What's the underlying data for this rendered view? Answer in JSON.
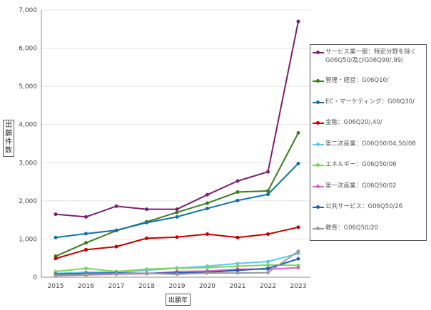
{
  "chart_data": {
    "type": "line",
    "xlabel": "出願年",
    "ylabel": "出願件数",
    "ylim": [
      0,
      7000
    ],
    "yticks": [
      "0",
      "1,000",
      "2,000",
      "3,000",
      "4,000",
      "5,000",
      "6,000",
      "7,000"
    ],
    "categories": [
      "2015",
      "2016",
      "2017",
      "2018",
      "2019",
      "2020",
      "2021",
      "2022",
      "2023"
    ],
    "grid": true,
    "legend_position": "right",
    "series": [
      {
        "name": "サービス業一般：特定分野を除くG06Q50/及びG06Q90/,99/",
        "color": "#7b1f6f",
        "values": [
          1650,
          1580,
          1860,
          1780,
          1780,
          2160,
          2520,
          2760,
          6700
        ]
      },
      {
        "name": "管理・経営：G06Q10/",
        "color": "#3a7d1e",
        "values": [
          550,
          900,
          1220,
          1450,
          1700,
          1940,
          2230,
          2260,
          3780
        ]
      },
      {
        "name": "EC・マーケティング：G06Q30/",
        "color": "#1170a8",
        "values": [
          1040,
          1140,
          1230,
          1430,
          1580,
          1800,
          2010,
          2170,
          2980
        ]
      },
      {
        "name": "金融：G06Q20/,40/",
        "color": "#c00000",
        "values": [
          490,
          720,
          800,
          1020,
          1050,
          1130,
          1040,
          1130,
          1310
        ]
      },
      {
        "name": "第二次産業：G06Q50/04,50/08",
        "color": "#5bc8f0",
        "values": [
          100,
          130,
          130,
          180,
          240,
          290,
          360,
          410,
          620
        ]
      },
      {
        "name": "エネルギー：G06Q50/06",
        "color": "#7fd35a",
        "values": [
          150,
          230,
          150,
          210,
          240,
          250,
          290,
          320,
          310
        ]
      },
      {
        "name": "第一次産業：G06Q50/02",
        "color": "#e060c8",
        "values": [
          40,
          60,
          80,
          90,
          150,
          160,
          210,
          210,
          250
        ]
      },
      {
        "name": "公共サービス：G06Q50/26",
        "color": "#1f5fb4",
        "values": [
          80,
          100,
          110,
          100,
          110,
          130,
          180,
          230,
          480
        ]
      },
      {
        "name": "教育：G06Q50/20",
        "color": "#999999",
        "values": [
          50,
          80,
          90,
          100,
          80,
          110,
          110,
          120,
          680
        ]
      }
    ]
  }
}
